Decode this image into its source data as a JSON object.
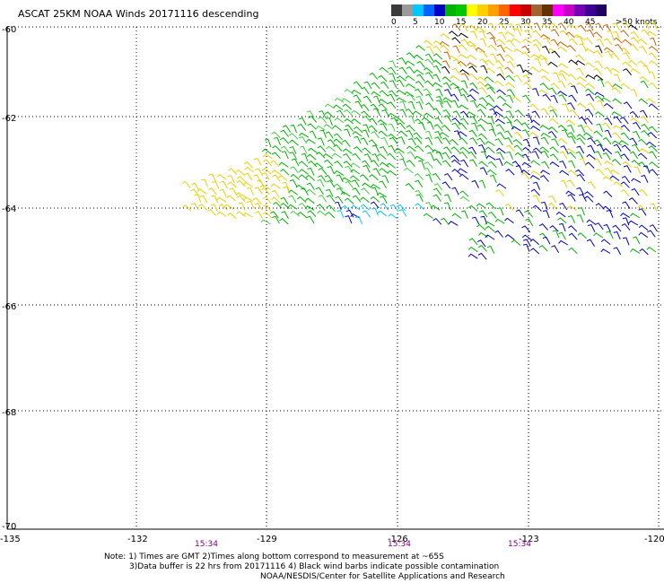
{
  "title": "ASCAT 25KM NOAA Winds 20171116 descending",
  "colorscale": {
    "colors": [
      "#3a3a3a",
      "#9a9a9a",
      "#00c8ff",
      "#0064ff",
      "#0000c8",
      "#00b400",
      "#00c800",
      "#ffff00",
      "#ffd000",
      "#ffa000",
      "#ff6400",
      "#ff0000",
      "#c80000",
      "#a06432",
      "#643200",
      "#ff00ff",
      "#c800c8",
      "#7800b4",
      "#3c0096",
      "#1e0064"
    ],
    "labels": [
      "0",
      "5",
      "10",
      "15",
      "20",
      "25",
      "30",
      "35",
      "40",
      "45",
      ">50 knots"
    ]
  },
  "axes": {
    "lat_labels": [
      "-60",
      "-62",
      "-64",
      "-66",
      "-68",
      "-70"
    ],
    "lon_labels": [
      "-135",
      "-132",
      "-129",
      "-126",
      "-123",
      "-120"
    ]
  },
  "times": [
    "15:34",
    "15:34",
    "15:34"
  ],
  "notes": [
    "Note: 1) Times are GMT 2)Times along bottom correspond to measurement at ~65S",
    "3)Data buffer is 22 hrs from 20171116 4) Black wind barbs indicate possible contamination",
    "NOAA/NESDIS/Center for Satellite Applications and Research"
  ],
  "barb_colors": {
    "yellow": "#e8d000",
    "orange": "#d06000",
    "green": "#00b400",
    "lightgreen": "#40d040",
    "blue": "#0000c8",
    "cyan": "#00c8ff",
    "black": "#000000"
  }
}
